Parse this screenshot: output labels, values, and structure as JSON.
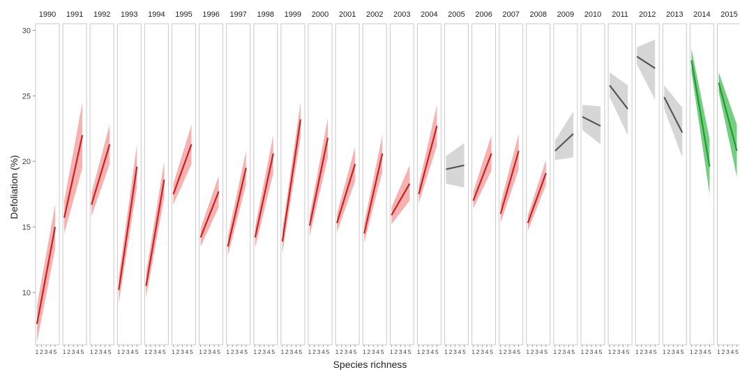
{
  "chart_data": {
    "type": "line",
    "title": "",
    "xlabel": "Species richness",
    "ylabel": "Defoliation (%)",
    "ylim": [
      6,
      30.5
    ],
    "yticks": [
      10,
      15,
      20,
      25,
      30
    ],
    "xticks": [
      "1",
      "2",
      "3",
      "4",
      "5"
    ],
    "grid": false,
    "colors": {
      "significant_positive": "#cc1f1f",
      "nonsignificant": "#555555",
      "significant_negative": "#1f9a2e",
      "band_positive": "#f4a3a3",
      "band_nonsignificant": "#cfcfcf",
      "band_negative": "#5cc46a"
    },
    "panels": [
      {
        "year": "1990",
        "trend": "positive",
        "x": [
          1,
          5
        ],
        "y": [
          7.6,
          15.0
        ],
        "ci_low": [
          6.2,
          13.3
        ],
        "ci_high": [
          9.0,
          16.7
        ]
      },
      {
        "year": "1991",
        "trend": "positive",
        "x": [
          1,
          5
        ],
        "y": [
          15.7,
          22.0
        ],
        "ci_low": [
          14.5,
          19.5
        ],
        "ci_high": [
          17.0,
          24.5
        ]
      },
      {
        "year": "1992",
        "trend": "positive",
        "x": [
          1,
          5
        ],
        "y": [
          16.7,
          21.3
        ],
        "ci_low": [
          15.8,
          19.8
        ],
        "ci_high": [
          17.6,
          22.8
        ]
      },
      {
        "year": "1993",
        "trend": "positive",
        "x": [
          1,
          5
        ],
        "y": [
          10.2,
          19.6
        ],
        "ci_low": [
          9.2,
          18.0
        ],
        "ci_high": [
          11.2,
          21.3
        ]
      },
      {
        "year": "1994",
        "trend": "positive",
        "x": [
          1,
          5
        ],
        "y": [
          10.5,
          18.6
        ],
        "ci_low": [
          9.6,
          17.2
        ],
        "ci_high": [
          11.5,
          20.0
        ]
      },
      {
        "year": "1995",
        "trend": "positive",
        "x": [
          1,
          5
        ],
        "y": [
          17.5,
          21.3
        ],
        "ci_low": [
          16.7,
          19.8
        ],
        "ci_high": [
          18.3,
          22.8
        ]
      },
      {
        "year": "1996",
        "trend": "positive",
        "x": [
          1,
          5
        ],
        "y": [
          14.2,
          17.7
        ],
        "ci_low": [
          13.5,
          16.5
        ],
        "ci_high": [
          14.9,
          18.9
        ]
      },
      {
        "year": "1997",
        "trend": "positive",
        "x": [
          1,
          5
        ],
        "y": [
          13.5,
          19.5
        ],
        "ci_low": [
          12.8,
          18.2
        ],
        "ci_high": [
          14.3,
          20.8
        ]
      },
      {
        "year": "1998",
        "trend": "positive",
        "x": [
          1,
          5
        ],
        "y": [
          14.2,
          20.6
        ],
        "ci_low": [
          13.4,
          19.1
        ],
        "ci_high": [
          15.0,
          22.0
        ]
      },
      {
        "year": "1999",
        "trend": "positive",
        "x": [
          1,
          5
        ],
        "y": [
          13.9,
          23.2
        ],
        "ci_low": [
          13.0,
          21.8
        ],
        "ci_high": [
          14.8,
          24.5
        ]
      },
      {
        "year": "2000",
        "trend": "positive",
        "x": [
          1,
          5
        ],
        "y": [
          15.1,
          21.8
        ],
        "ci_low": [
          14.3,
          20.3
        ],
        "ci_high": [
          15.9,
          23.3
        ]
      },
      {
        "year": "2001",
        "trend": "positive",
        "x": [
          1,
          5
        ],
        "y": [
          15.3,
          19.8
        ],
        "ci_low": [
          14.6,
          18.5
        ],
        "ci_high": [
          16.0,
          21.1
        ]
      },
      {
        "year": "2002",
        "trend": "positive",
        "x": [
          1,
          5
        ],
        "y": [
          14.5,
          20.6
        ],
        "ci_low": [
          13.8,
          19.2
        ],
        "ci_high": [
          15.3,
          22.0
        ]
      },
      {
        "year": "2003",
        "trend": "positive",
        "x": [
          1,
          5
        ],
        "y": [
          15.9,
          18.3
        ],
        "ci_low": [
          15.2,
          17.0
        ],
        "ci_high": [
          16.5,
          19.7
        ]
      },
      {
        "year": "2004",
        "trend": "positive",
        "x": [
          1,
          5
        ],
        "y": [
          17.5,
          22.7
        ],
        "ci_low": [
          16.8,
          21.2
        ],
        "ci_high": [
          18.2,
          24.3
        ]
      },
      {
        "year": "2005",
        "trend": "nonsignificant",
        "x": [
          1,
          5
        ],
        "y": [
          19.4,
          19.7
        ],
        "ci_low": [
          18.3,
          18.0
        ],
        "ci_high": [
          20.4,
          21.4
        ]
      },
      {
        "year": "2006",
        "trend": "positive",
        "x": [
          1,
          5
        ],
        "y": [
          17.0,
          20.6
        ],
        "ci_low": [
          16.4,
          19.3
        ],
        "ci_high": [
          17.7,
          22.0
        ]
      },
      {
        "year": "2007",
        "trend": "positive",
        "x": [
          1,
          5
        ],
        "y": [
          16.0,
          20.8
        ],
        "ci_low": [
          15.3,
          19.4
        ],
        "ci_high": [
          16.8,
          22.1
        ]
      },
      {
        "year": "2008",
        "trend": "positive",
        "x": [
          1,
          5
        ],
        "y": [
          15.3,
          19.1
        ],
        "ci_low": [
          14.7,
          18.2
        ],
        "ci_high": [
          15.9,
          20.1
        ]
      },
      {
        "year": "2009",
        "trend": "nonsignificant",
        "x": [
          1,
          5
        ],
        "y": [
          20.8,
          22.1
        ],
        "ci_low": [
          20.1,
          20.3
        ],
        "ci_high": [
          21.6,
          23.8
        ]
      },
      {
        "year": "2010",
        "trend": "nonsignificant",
        "x": [
          1,
          5
        ],
        "y": [
          23.4,
          22.7
        ],
        "ci_low": [
          22.4,
          21.3
        ],
        "ci_high": [
          24.3,
          24.2
        ]
      },
      {
        "year": "2011",
        "trend": "nonsignificant",
        "x": [
          1,
          5
        ],
        "y": [
          25.8,
          24.0
        ],
        "ci_low": [
          24.9,
          22.0
        ],
        "ci_high": [
          26.8,
          25.8
        ]
      },
      {
        "year": "2012",
        "trend": "nonsignificant",
        "x": [
          1,
          5
        ],
        "y": [
          28.0,
          27.1
        ],
        "ci_low": [
          27.4,
          24.7
        ],
        "ci_high": [
          28.7,
          29.3
        ]
      },
      {
        "year": "2013",
        "trend": "nonsignificant",
        "x": [
          1,
          5
        ],
        "y": [
          24.9,
          22.2
        ],
        "ci_low": [
          24.0,
          20.3
        ],
        "ci_high": [
          25.8,
          24.1
        ]
      },
      {
        "year": "2014",
        "trend": "negative",
        "x": [
          1,
          5
        ],
        "y": [
          27.7,
          19.6
        ],
        "ci_low": [
          26.8,
          17.5
        ],
        "ci_high": [
          28.6,
          21.7
        ]
      },
      {
        "year": "2015",
        "trend": "negative",
        "x": [
          1,
          5
        ],
        "y": [
          26.0,
          20.8
        ],
        "ci_low": [
          25.3,
          18.8
        ],
        "ci_high": [
          26.8,
          22.8
        ]
      }
    ]
  }
}
